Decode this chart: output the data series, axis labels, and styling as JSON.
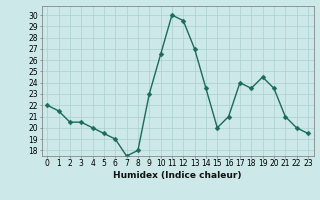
{
  "x": [
    0,
    1,
    2,
    3,
    4,
    5,
    6,
    7,
    8,
    9,
    10,
    11,
    12,
    13,
    14,
    15,
    16,
    17,
    18,
    19,
    20,
    21,
    22,
    23
  ],
  "y": [
    22,
    21.5,
    20.5,
    20.5,
    20,
    19.5,
    19,
    17.5,
    18,
    23,
    26.5,
    30,
    29.5,
    27,
    23.5,
    20,
    21,
    24,
    23.5,
    24.5,
    23.5,
    21,
    20,
    19.5
  ],
  "line_color": "#1a6b5a",
  "marker_color": "#1a6b5a",
  "bg_color": "#cce8e8",
  "grid_color": "#aacfcf",
  "xlabel": "Humidex (Indice chaleur)",
  "ylim": [
    17.5,
    30.8
  ],
  "xlim": [
    -0.5,
    23.5
  ],
  "yticks": [
    18,
    19,
    20,
    21,
    22,
    23,
    24,
    25,
    26,
    27,
    28,
    29,
    30
  ],
  "xticks": [
    0,
    1,
    2,
    3,
    4,
    5,
    6,
    7,
    8,
    9,
    10,
    11,
    12,
    13,
    14,
    15,
    16,
    17,
    18,
    19,
    20,
    21,
    22,
    23
  ],
  "xlabel_fontsize": 6.5,
  "tick_fontsize": 5.5,
  "line_width": 1.0,
  "marker_size": 2.5
}
